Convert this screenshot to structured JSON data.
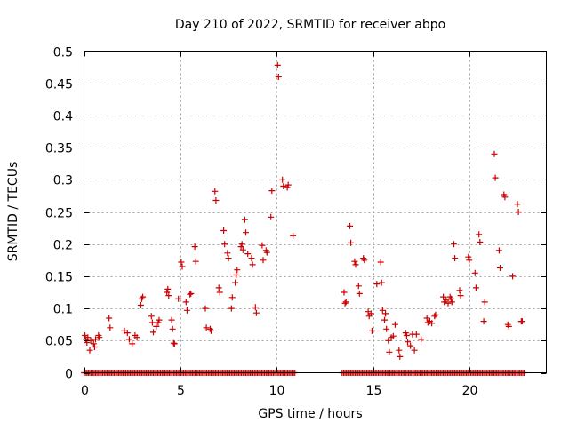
{
  "chart_data": {
    "type": "scatter",
    "title": "Day 210 of 2022, SRMTID for receiver abpo",
    "xlabel": "GPS time / hours",
    "ylabel": "SRMTID / TECUs",
    "xlim": [
      0,
      24
    ],
    "ylim": [
      0,
      0.5
    ],
    "xticks": [
      0,
      5,
      10,
      15,
      20
    ],
    "xtick_labels": [
      "0",
      "5",
      "10",
      "15",
      "20"
    ],
    "yticks": [
      0,
      0.05,
      0.1,
      0.15,
      0.2,
      0.25,
      0.3,
      0.35,
      0.4,
      0.45,
      0.5
    ],
    "ytick_labels": [
      "0",
      "0.05",
      "0.1",
      "0.15",
      "0.2",
      "0.25",
      "0.3",
      "0.35",
      "0.4",
      "0.45",
      "0.5"
    ],
    "grid": true,
    "marker": "+",
    "color": "#cc0000",
    "zero_segments": [
      [
        0.0,
        10.95
      ],
      [
        13.4,
        22.9
      ]
    ],
    "zero_step": 0.075,
    "series": [
      {
        "name": "SRMTID",
        "points": [
          [
            0.05,
            0.058
          ],
          [
            0.1,
            0.052
          ],
          [
            0.15,
            0.047
          ],
          [
            0.2,
            0.055
          ],
          [
            0.3,
            0.035
          ],
          [
            0.35,
            0.05
          ],
          [
            0.5,
            0.045
          ],
          [
            0.55,
            0.04
          ],
          [
            0.6,
            0.052
          ],
          [
            0.75,
            0.058
          ],
          [
            0.8,
            0.055
          ],
          [
            1.3,
            0.085
          ],
          [
            1.35,
            0.07
          ],
          [
            2.1,
            0.065
          ],
          [
            2.25,
            0.062
          ],
          [
            2.35,
            0.052
          ],
          [
            2.5,
            0.045
          ],
          [
            2.65,
            0.058
          ],
          [
            2.75,
            0.055
          ],
          [
            2.95,
            0.105
          ],
          [
            3.0,
            0.115
          ],
          [
            3.05,
            0.118
          ],
          [
            3.5,
            0.088
          ],
          [
            3.55,
            0.078
          ],
          [
            3.6,
            0.063
          ],
          [
            3.75,
            0.072
          ],
          [
            3.85,
            0.078
          ],
          [
            3.9,
            0.082
          ],
          [
            4.3,
            0.125
          ],
          [
            4.35,
            0.13
          ],
          [
            4.4,
            0.12
          ],
          [
            4.55,
            0.082
          ],
          [
            4.6,
            0.068
          ],
          [
            4.65,
            0.046
          ],
          [
            4.7,
            0.045
          ],
          [
            4.9,
            0.115
          ],
          [
            5.05,
            0.172
          ],
          [
            5.1,
            0.165
          ],
          [
            5.3,
            0.11
          ],
          [
            5.35,
            0.097
          ],
          [
            5.5,
            0.122
          ],
          [
            5.55,
            0.123
          ],
          [
            5.75,
            0.196
          ],
          [
            5.8,
            0.173
          ],
          [
            6.3,
            0.1
          ],
          [
            6.35,
            0.07
          ],
          [
            6.55,
            0.068
          ],
          [
            6.6,
            0.065
          ],
          [
            6.8,
            0.282
          ],
          [
            6.85,
            0.268
          ],
          [
            7.0,
            0.132
          ],
          [
            7.05,
            0.125
          ],
          [
            7.25,
            0.221
          ],
          [
            7.3,
            0.2
          ],
          [
            7.45,
            0.186
          ],
          [
            7.5,
            0.178
          ],
          [
            7.65,
            0.1
          ],
          [
            7.7,
            0.117
          ],
          [
            7.85,
            0.14
          ],
          [
            7.9,
            0.152
          ],
          [
            7.95,
            0.16
          ],
          [
            8.15,
            0.196
          ],
          [
            8.2,
            0.2
          ],
          [
            8.25,
            0.191
          ],
          [
            8.35,
            0.238
          ],
          [
            8.4,
            0.218
          ],
          [
            8.5,
            0.185
          ],
          [
            8.7,
            0.178
          ],
          [
            8.75,
            0.168
          ],
          [
            8.9,
            0.102
          ],
          [
            8.95,
            0.093
          ],
          [
            9.25,
            0.198
          ],
          [
            9.3,
            0.175
          ],
          [
            9.45,
            0.19
          ],
          [
            9.5,
            0.187
          ],
          [
            9.7,
            0.242
          ],
          [
            9.75,
            0.283
          ],
          [
            10.05,
            0.478
          ],
          [
            10.1,
            0.46
          ],
          [
            10.3,
            0.3
          ],
          [
            10.35,
            0.29
          ],
          [
            10.55,
            0.288
          ],
          [
            10.6,
            0.292
          ],
          [
            10.85,
            0.213
          ],
          [
            13.5,
            0.125
          ],
          [
            13.55,
            0.108
          ],
          [
            13.6,
            0.11
          ],
          [
            13.8,
            0.228
          ],
          [
            13.85,
            0.202
          ],
          [
            14.05,
            0.173
          ],
          [
            14.1,
            0.168
          ],
          [
            14.25,
            0.135
          ],
          [
            14.3,
            0.123
          ],
          [
            14.5,
            0.178
          ],
          [
            14.55,
            0.175
          ],
          [
            14.75,
            0.095
          ],
          [
            14.8,
            0.088
          ],
          [
            14.9,
            0.092
          ],
          [
            14.95,
            0.065
          ],
          [
            15.2,
            0.138
          ],
          [
            15.4,
            0.172
          ],
          [
            15.45,
            0.14
          ],
          [
            15.5,
            0.097
          ],
          [
            15.6,
            0.082
          ],
          [
            15.65,
            0.092
          ],
          [
            15.7,
            0.068
          ],
          [
            15.8,
            0.05
          ],
          [
            15.85,
            0.032
          ],
          [
            15.95,
            0.055
          ],
          [
            16.05,
            0.057
          ],
          [
            16.15,
            0.075
          ],
          [
            16.35,
            0.035
          ],
          [
            16.4,
            0.025
          ],
          [
            16.7,
            0.062
          ],
          [
            16.75,
            0.058
          ],
          [
            16.8,
            0.048
          ],
          [
            16.95,
            0.042
          ],
          [
            17.05,
            0.06
          ],
          [
            17.15,
            0.035
          ],
          [
            17.25,
            0.06
          ],
          [
            17.5,
            0.052
          ],
          [
            17.8,
            0.085
          ],
          [
            17.85,
            0.078
          ],
          [
            17.95,
            0.08
          ],
          [
            18.05,
            0.077
          ],
          [
            18.2,
            0.088
          ],
          [
            18.25,
            0.09
          ],
          [
            18.65,
            0.118
          ],
          [
            18.7,
            0.11
          ],
          [
            18.8,
            0.113
          ],
          [
            18.9,
            0.108
          ],
          [
            19.0,
            0.118
          ],
          [
            19.05,
            0.115
          ],
          [
            19.1,
            0.11
          ],
          [
            19.2,
            0.2
          ],
          [
            19.25,
            0.178
          ],
          [
            19.5,
            0.128
          ],
          [
            19.55,
            0.12
          ],
          [
            19.95,
            0.18
          ],
          [
            20.0,
            0.175
          ],
          [
            20.3,
            0.155
          ],
          [
            20.35,
            0.132
          ],
          [
            20.5,
            0.215
          ],
          [
            20.55,
            0.203
          ],
          [
            20.75,
            0.08
          ],
          [
            20.8,
            0.11
          ],
          [
            21.3,
            0.34
          ],
          [
            21.35,
            0.303
          ],
          [
            21.55,
            0.19
          ],
          [
            21.6,
            0.163
          ],
          [
            21.8,
            0.277
          ],
          [
            21.85,
            0.273
          ],
          [
            22.0,
            0.075
          ],
          [
            22.05,
            0.072
          ],
          [
            22.25,
            0.15
          ],
          [
            22.5,
            0.262
          ],
          [
            22.55,
            0.25
          ],
          [
            22.7,
            0.08
          ],
          [
            22.75,
            0.08
          ]
        ]
      }
    ]
  }
}
